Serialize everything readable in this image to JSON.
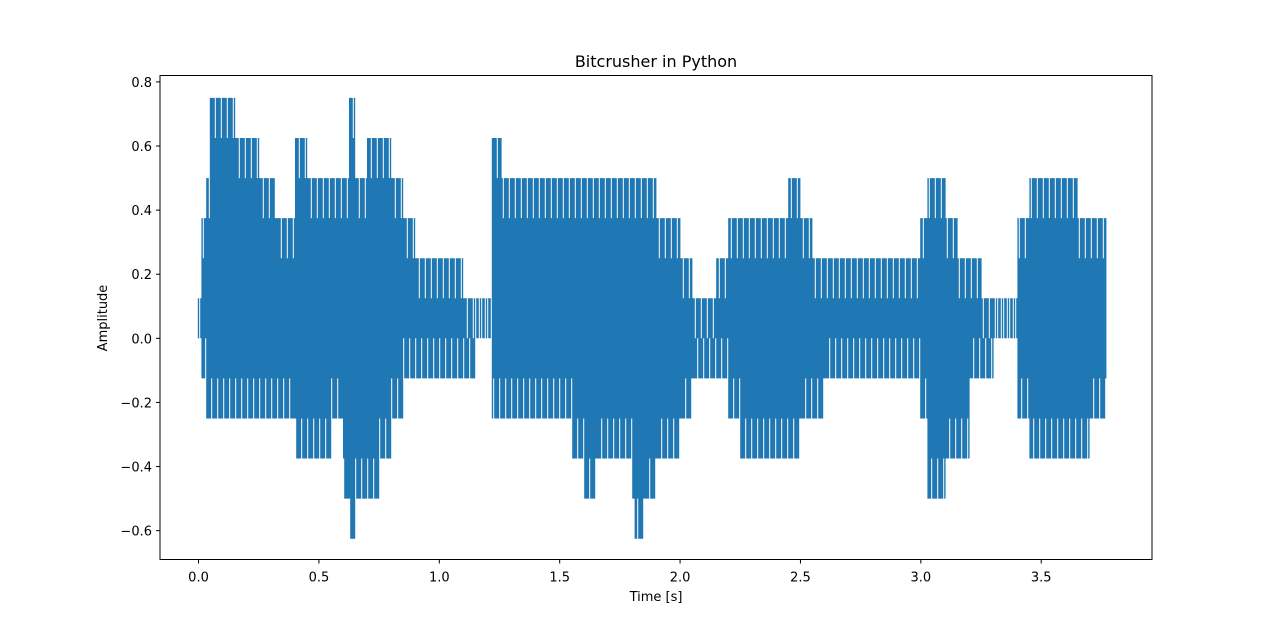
{
  "chart_data": {
    "type": "line",
    "title": "Bitcrusher in Python",
    "xlabel": "Time [s]",
    "ylabel": "Amplitude",
    "xlim": [
      -0.16,
      3.96
    ],
    "ylim": [
      -0.69,
      0.82
    ],
    "xticks": [
      0.0,
      0.5,
      1.0,
      1.5,
      2.0,
      2.5,
      3.0,
      3.5
    ],
    "xtick_labels": [
      "0.0",
      "0.5",
      "1.0",
      "1.5",
      "2.0",
      "2.5",
      "3.0",
      "3.5"
    ],
    "yticks": [
      -0.6,
      -0.4,
      -0.2,
      0.0,
      0.2,
      0.4,
      0.6,
      0.8
    ],
    "ytick_labels": [
      "−0.6",
      "−0.4",
      "−0.2",
      "0.0",
      "0.2",
      "0.4",
      "0.6",
      "0.8"
    ],
    "grid": false,
    "color": "#1f77b4",
    "series": [
      {
        "x": [
          0.0,
          0.01,
          0.03,
          0.045,
          0.06,
          0.09,
          0.12,
          0.15,
          0.18,
          0.21,
          0.25,
          0.28,
          0.32,
          0.36,
          0.4,
          0.45,
          0.5,
          0.55,
          0.6,
          0.625,
          0.65,
          0.7,
          0.75,
          0.8,
          0.85,
          0.9,
          0.95,
          1.0,
          1.05,
          1.1,
          1.15,
          1.2,
          1.22,
          1.26,
          1.3,
          1.35,
          1.4,
          1.45,
          1.5,
          1.55,
          1.6,
          1.65,
          1.7,
          1.75,
          1.8,
          1.81,
          1.85,
          1.9,
          1.95,
          2.0,
          2.05,
          2.1,
          2.15,
          2.2,
          2.25,
          2.3,
          2.35,
          2.4,
          2.45,
          2.5,
          2.55,
          2.6,
          2.65,
          2.7,
          2.75,
          2.8,
          2.85,
          2.9,
          2.95,
          3.0,
          3.03,
          3.06,
          3.1,
          3.15,
          3.2,
          3.25,
          3.3,
          3.35,
          3.4,
          3.45,
          3.5,
          3.55,
          3.6,
          3.65,
          3.7,
          3.77
        ],
        "max": [
          0.125,
          0.375,
          0.5,
          0.75,
          0.75,
          0.75,
          0.75,
          0.625,
          0.625,
          0.625,
          0.5,
          0.5,
          0.375,
          0.375,
          0.625,
          0.5,
          0.5,
          0.5,
          0.5,
          0.75,
          0.5,
          0.625,
          0.625,
          0.5,
          0.375,
          0.25,
          0.25,
          0.25,
          0.25,
          0.125,
          0.125,
          0.125,
          0.625,
          0.5,
          0.5,
          0.5,
          0.5,
          0.5,
          0.5,
          0.5,
          0.5,
          0.5,
          0.5,
          0.5,
          0.5,
          0.5,
          0.5,
          0.375,
          0.375,
          0.25,
          0.125,
          0.125,
          0.25,
          0.375,
          0.375,
          0.375,
          0.375,
          0.375,
          0.5,
          0.375,
          0.25,
          0.25,
          0.25,
          0.25,
          0.25,
          0.25,
          0.25,
          0.25,
          0.25,
          0.375,
          0.5,
          0.5,
          0.375,
          0.25,
          0.25,
          0.125,
          0.125,
          0.125,
          0.375,
          0.5,
          0.5,
          0.5,
          0.5,
          0.375,
          0.375,
          0.25
        ],
        "min": [
          0.0,
          -0.125,
          -0.25,
          -0.25,
          -0.25,
          -0.25,
          -0.25,
          -0.25,
          -0.25,
          -0.25,
          -0.25,
          -0.25,
          -0.25,
          -0.25,
          -0.375,
          -0.375,
          -0.375,
          -0.25,
          -0.5,
          -0.625,
          -0.5,
          -0.5,
          -0.375,
          -0.25,
          -0.125,
          -0.125,
          -0.125,
          -0.125,
          -0.125,
          -0.125,
          0.0,
          0.0,
          -0.25,
          -0.25,
          -0.25,
          -0.25,
          -0.25,
          -0.25,
          -0.25,
          -0.375,
          -0.5,
          -0.375,
          -0.375,
          -0.375,
          -0.5,
          -0.625,
          -0.5,
          -0.375,
          -0.375,
          -0.25,
          -0.125,
          -0.125,
          -0.125,
          -0.25,
          -0.375,
          -0.375,
          -0.375,
          -0.375,
          -0.375,
          -0.25,
          -0.25,
          -0.125,
          -0.125,
          -0.125,
          -0.125,
          -0.125,
          -0.125,
          -0.125,
          -0.125,
          -0.25,
          -0.5,
          -0.5,
          -0.375,
          -0.375,
          -0.125,
          -0.125,
          0.0,
          0.0,
          -0.25,
          -0.375,
          -0.375,
          -0.375,
          -0.375,
          -0.375,
          -0.25,
          -0.125
        ]
      }
    ]
  }
}
